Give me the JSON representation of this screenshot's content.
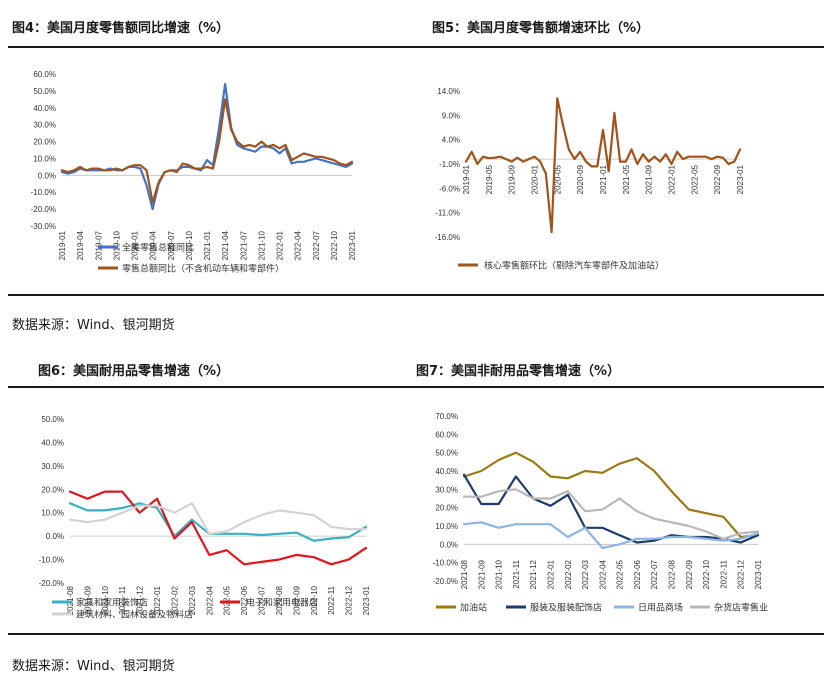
{
  "panels": {
    "fig4_title": "图4：美国月度零售额同比增速（%）",
    "fig5_title": "图5：美国月度零售额增速环比（%）",
    "fig6_title": "图6：美国耐用品零售增速（%）",
    "fig7_title": "图7：美国非耐用品零售增速（%）",
    "source_1": "数据来源：Wind、银河期货",
    "source_2": "数据来源：Wind、银河期货"
  },
  "chart_data": [
    {
      "id": "fig4",
      "type": "line",
      "title": "图4：美国月度零售额同比增速（%）",
      "ylim": [
        -30,
        60
      ],
      "yticks": [
        60,
        50,
        40,
        30,
        20,
        10,
        0,
        -10,
        -20,
        -30
      ],
      "ytick_labels": [
        "60.0%",
        "50.0%",
        "40.0%",
        "30.0%",
        "20.0%",
        "10.0%",
        "0.0%",
        "-10.0%",
        "-20.0%",
        "-30.0%"
      ],
      "xtick_labels": [
        "2019-01",
        "2019-04",
        "2019-07",
        "2019-10",
        "2020-01",
        "2020-04",
        "2020-07",
        "2020-10",
        "2021-01",
        "2021-04",
        "2021-07",
        "2021-10",
        "2022-01",
        "2022-04",
        "2022-07",
        "2022-10",
        "2023-01"
      ],
      "x_count": 49,
      "series": [
        {
          "name": "全美零售总额同比",
          "color": "#4472c4",
          "values": [
            2,
            1,
            2,
            4,
            3,
            3,
            3,
            3,
            4,
            3,
            3,
            5,
            5,
            4,
            -6,
            -20,
            -5,
            2,
            3,
            3,
            5,
            5,
            4,
            3,
            9,
            6,
            28,
            54,
            28,
            18,
            16,
            15,
            14,
            17,
            17,
            16,
            13,
            16,
            7,
            8,
            8,
            9,
            10,
            9,
            8,
            7,
            6,
            5,
            7
          ]
        },
        {
          "name": "零售总额同比（不含机动车辆和零部件）",
          "color": "#a0541b",
          "values": [
            3,
            2,
            3,
            5,
            3,
            4,
            4,
            3,
            3,
            4,
            3,
            5,
            6,
            6,
            3,
            -16,
            -4,
            2,
            3,
            2,
            7,
            6,
            4,
            4,
            5,
            4,
            20,
            45,
            27,
            20,
            17,
            18,
            17,
            20,
            17,
            18,
            16,
            18,
            9,
            11,
            13,
            12,
            11,
            11,
            10,
            9,
            7,
            6,
            8
          ]
        }
      ]
    },
    {
      "id": "fig5",
      "type": "line",
      "title": "图5：美国月度零售额增速环比（%）",
      "ylim": [
        -16,
        14
      ],
      "yticks": [
        14,
        9,
        4,
        -1,
        -6,
        -11,
        -16
      ],
      "ytick_labels": [
        "14.0%",
        "9.0%",
        "4.0%",
        "-1.0%",
        "-6.0%",
        "-11.0%",
        "-16.0%"
      ],
      "xtick_labels": [
        "2019-01",
        "2019-05",
        "2019-09",
        "2020-01",
        "2020-05",
        "2020-09",
        "2021-01",
        "2021-05",
        "2021-09",
        "2022-01",
        "2022-05",
        "2022-09",
        "2023-01"
      ],
      "x_count": 49,
      "series": [
        {
          "name": "核心零售额环比（剔除汽车零部件及加油站）",
          "color": "#a0541b",
          "values": [
            -0.5,
            1.5,
            -1,
            0.5,
            0.2,
            0.3,
            0.5,
            0,
            -0.5,
            0.3,
            -0.5,
            0,
            0.5,
            -0.5,
            -3,
            -15,
            12.5,
            7,
            2,
            0,
            1.5,
            -0.5,
            -1.5,
            -1.5,
            6,
            -2.5,
            9.5,
            -0.5,
            -0.5,
            2,
            -1,
            1,
            -0.5,
            0.5,
            -0.5,
            1,
            -1,
            1.5,
            0,
            0.5,
            0.5,
            0.5,
            0.5,
            0,
            0.5,
            0.3,
            -1,
            -0.5,
            2
          ]
        }
      ]
    },
    {
      "id": "fig6",
      "type": "line",
      "title": "图6：美国耐用品零售增速（%）",
      "ylim": [
        -20,
        50
      ],
      "yticks": [
        50,
        40,
        30,
        20,
        10,
        0,
        -10,
        -20
      ],
      "ytick_labels": [
        "50.0%",
        "40.0%",
        "30.0%",
        "20.0%",
        "10.0%",
        "0.0%",
        "-10.0%",
        "-20.0%"
      ],
      "xtick_labels": [
        "2021-08",
        "2021-09",
        "2021-10",
        "2021-11",
        "2021-12",
        "2022-01",
        "2022-02",
        "2022-03",
        "2022-04",
        "2022-05",
        "2022-06",
        "2022-07",
        "2022-08",
        "2022-09",
        "2022-10",
        "2022-11",
        "2022-12",
        "2023-01"
      ],
      "x_count": 18,
      "series": [
        {
          "name": "家具和家用装饰店",
          "color": "#3ab0c0",
          "values": [
            14,
            11,
            11,
            12,
            14,
            12,
            0,
            7,
            1,
            1,
            1,
            0.5,
            1,
            1.5,
            -2,
            -1,
            -0.5,
            4
          ]
        },
        {
          "name": "电子和家用电器店",
          "color": "#e0161f",
          "values": [
            19,
            16,
            19,
            19,
            10,
            16,
            -1,
            6,
            -8,
            -6,
            -12,
            -11,
            -10,
            -8,
            -9,
            -12,
            -10,
            -5
          ]
        },
        {
          "name": "建筑材料、园林设备及物料店",
          "color": "#d3d3d3",
          "values": [
            7,
            6,
            7,
            10,
            13,
            13,
            10,
            14,
            1,
            2,
            6,
            9,
            11,
            10,
            9,
            4,
            3,
            3
          ]
        }
      ]
    },
    {
      "id": "fig7",
      "type": "line",
      "title": "图7：美国非耐用品零售增速（%）",
      "ylim": [
        -20,
        70
      ],
      "yticks": [
        70,
        60,
        50,
        40,
        30,
        20,
        10,
        0,
        -10,
        -20
      ],
      "ytick_labels": [
        "70.0%",
        "60.0%",
        "50.0%",
        "40.0%",
        "30.0%",
        "20.0%",
        "10.0%",
        "0.0%",
        "-10.0%",
        "-20.0%"
      ],
      "xtick_labels": [
        "2021-08",
        "2021-09",
        "2021-10",
        "2021-11",
        "2021-12",
        "2022-01",
        "2022-02",
        "2022-03",
        "2022-04",
        "2022-05",
        "2022-06",
        "2022-07",
        "2022-08",
        "2022-09",
        "2022-10",
        "2022-11",
        "2022-12",
        "2023-01"
      ],
      "x_count": 18,
      "series": [
        {
          "name": "加油站",
          "color": "#9a7a12",
          "values": [
            37,
            40,
            46,
            50,
            45,
            37,
            36,
            40,
            39,
            44,
            47,
            40,
            29,
            19,
            17,
            15,
            4,
            5
          ]
        },
        {
          "name": "服装及服装配饰店",
          "color": "#1f3b6b",
          "values": [
            38,
            22,
            22,
            37,
            25,
            21,
            27,
            9,
            9,
            5,
            1,
            2,
            5,
            4,
            4,
            3,
            1,
            5
          ]
        },
        {
          "name": "日用品商场",
          "color": "#8db4e2",
          "values": [
            11,
            12,
            9,
            11,
            11,
            11,
            4,
            9,
            -2,
            0,
            3,
            3,
            4,
            4,
            3,
            2,
            3,
            6
          ]
        },
        {
          "name": "杂货店零售业",
          "color": "#b8b8b8",
          "values": [
            26,
            26,
            29,
            30,
            25,
            25,
            29,
            18,
            19,
            25,
            18,
            14,
            12,
            10,
            7,
            3,
            6,
            7
          ]
        }
      ]
    }
  ]
}
